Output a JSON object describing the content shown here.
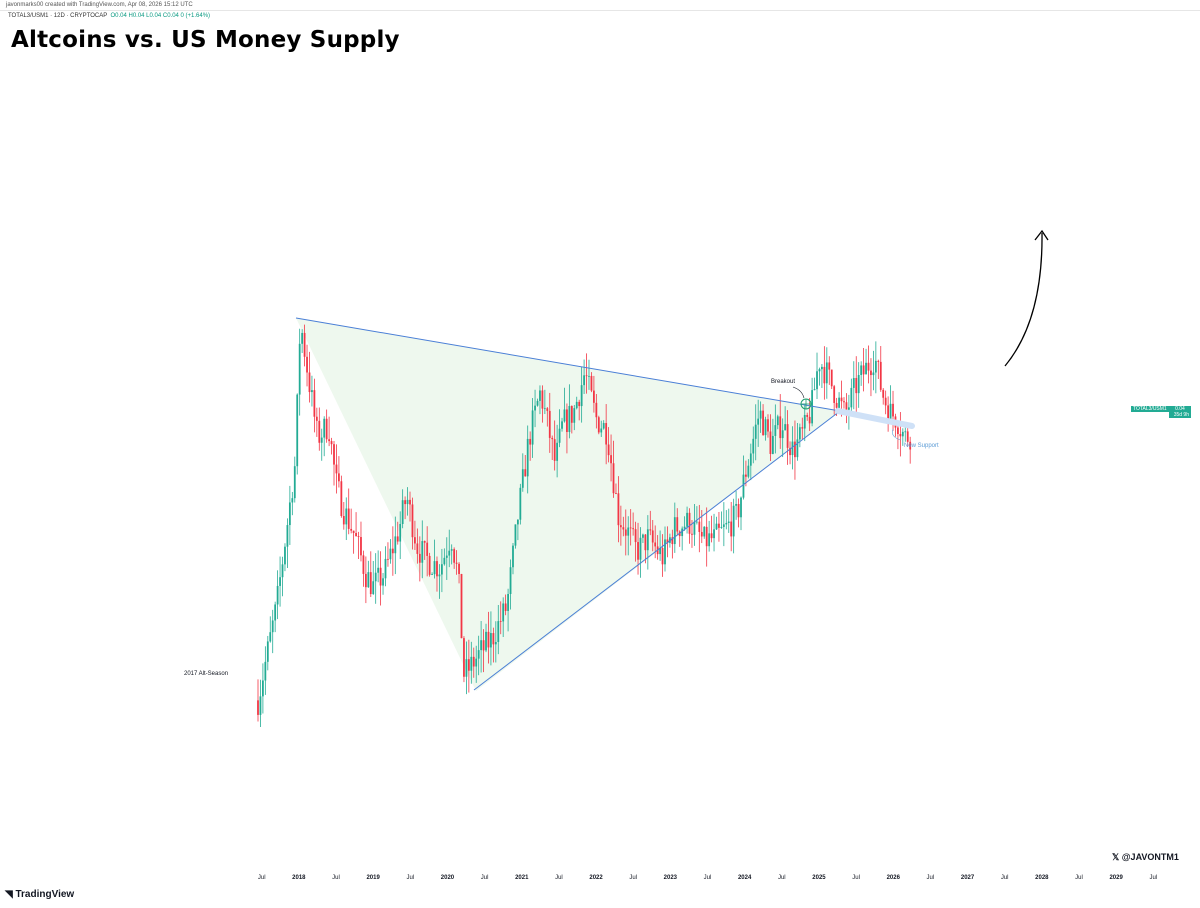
{
  "header": {
    "topbar": "javonmarks00 created with TradingView.com, Apr 08, 2026 15:12 UTC",
    "symbol": "TOTAL3/USM1 · 12D · CRYPTOCAP",
    "ohlc": "O0.04  H0.04  L0.04  C0.04  0 (+1.64%)",
    "title": "Altcoins vs. US Money Supply"
  },
  "annotations": {
    "alt_season": "2017 Alt-Season",
    "breakout": "Breakout",
    "new_support": "New Support"
  },
  "price_tag": {
    "symbol": "TOTAL3/USM1",
    "value": "0.04",
    "countdown": "35d 9h"
  },
  "watermark": "@JAVONTM1",
  "footer": {
    "logo_text": "TradingView"
  },
  "colors": {
    "up": "#22ab94",
    "down": "#f23645",
    "trendline": "#4a7fd6",
    "triangle_fill": "#eef8ee",
    "support": "#cfe1f7"
  },
  "chart_data": {
    "type": "candlestick",
    "title": "Altcoins vs. US Money Supply",
    "series": [
      {
        "name": "TOTAL3/USM1"
      }
    ],
    "x_ticks": [
      "Jul",
      "2018",
      "Jul",
      "2019",
      "Jul",
      "2020",
      "Jul",
      "2021",
      "Jul",
      "2022",
      "Jul",
      "2023",
      "Jul",
      "2024",
      "Jul",
      "2025",
      "Jul",
      "2026",
      "Jul",
      "2027",
      "Jul",
      "2028",
      "Jul",
      "2029",
      "Jul"
    ],
    "x_range": [
      2017.45,
      2029.55
    ],
    "close_path": [
      [
        2017.45,
        0.55
      ],
      [
        2017.7,
        2.0
      ],
      [
        2017.95,
        4.2
      ],
      [
        2018.02,
        6.4
      ],
      [
        2018.12,
        5.6
      ],
      [
        2018.25,
        4.6
      ],
      [
        2018.4,
        4.8
      ],
      [
        2018.5,
        3.9
      ],
      [
        2018.6,
        3.5
      ],
      [
        2018.75,
        3.1
      ],
      [
        2018.9,
        2.5
      ],
      [
        2019.0,
        2.3
      ],
      [
        2019.15,
        2.5
      ],
      [
        2019.35,
        3.2
      ],
      [
        2019.45,
        3.7
      ],
      [
        2019.6,
        2.9
      ],
      [
        2019.75,
        2.7
      ],
      [
        2019.9,
        2.6
      ],
      [
        2020.05,
        3.1
      ],
      [
        2020.15,
        2.4
      ],
      [
        2020.22,
        0.95
      ],
      [
        2020.3,
        1.05
      ],
      [
        2020.45,
        1.3
      ],
      [
        2020.6,
        1.5
      ],
      [
        2020.8,
        2.0
      ],
      [
        2020.95,
        3.4
      ],
      [
        2021.1,
        4.6
      ],
      [
        2021.25,
        5.3
      ],
      [
        2021.35,
        4.8
      ],
      [
        2021.45,
        4.2
      ],
      [
        2021.55,
        4.8
      ],
      [
        2021.7,
        5.0
      ],
      [
        2021.85,
        5.6
      ],
      [
        2022.0,
        4.9
      ],
      [
        2022.15,
        4.7
      ],
      [
        2022.3,
        3.4
      ],
      [
        2022.45,
        3.1
      ],
      [
        2022.55,
        2.85
      ],
      [
        2022.7,
        3.05
      ],
      [
        2022.9,
        2.75
      ],
      [
        2023.05,
        3.2
      ],
      [
        2023.25,
        3.3
      ],
      [
        2023.45,
        3.0
      ],
      [
        2023.6,
        3.05
      ],
      [
        2023.75,
        3.2
      ],
      [
        2023.9,
        3.4
      ],
      [
        2024.0,
        4.0
      ],
      [
        2024.2,
        5.0
      ],
      [
        2024.35,
        4.5
      ],
      [
        2024.5,
        4.85
      ],
      [
        2024.65,
        4.4
      ],
      [
        2024.8,
        4.7
      ],
      [
        2024.9,
        5.05
      ],
      [
        2025.0,
        5.8
      ],
      [
        2025.1,
        5.6
      ],
      [
        2025.25,
        5.2
      ],
      [
        2025.35,
        4.95
      ],
      [
        2025.5,
        5.4
      ],
      [
        2025.65,
        5.7
      ],
      [
        2025.75,
        5.85
      ],
      [
        2025.85,
        5.3
      ],
      [
        2025.95,
        5.0
      ],
      [
        2026.05,
        4.9
      ],
      [
        2026.15,
        4.6
      ],
      [
        2026.25,
        4.65
      ]
    ]
  }
}
